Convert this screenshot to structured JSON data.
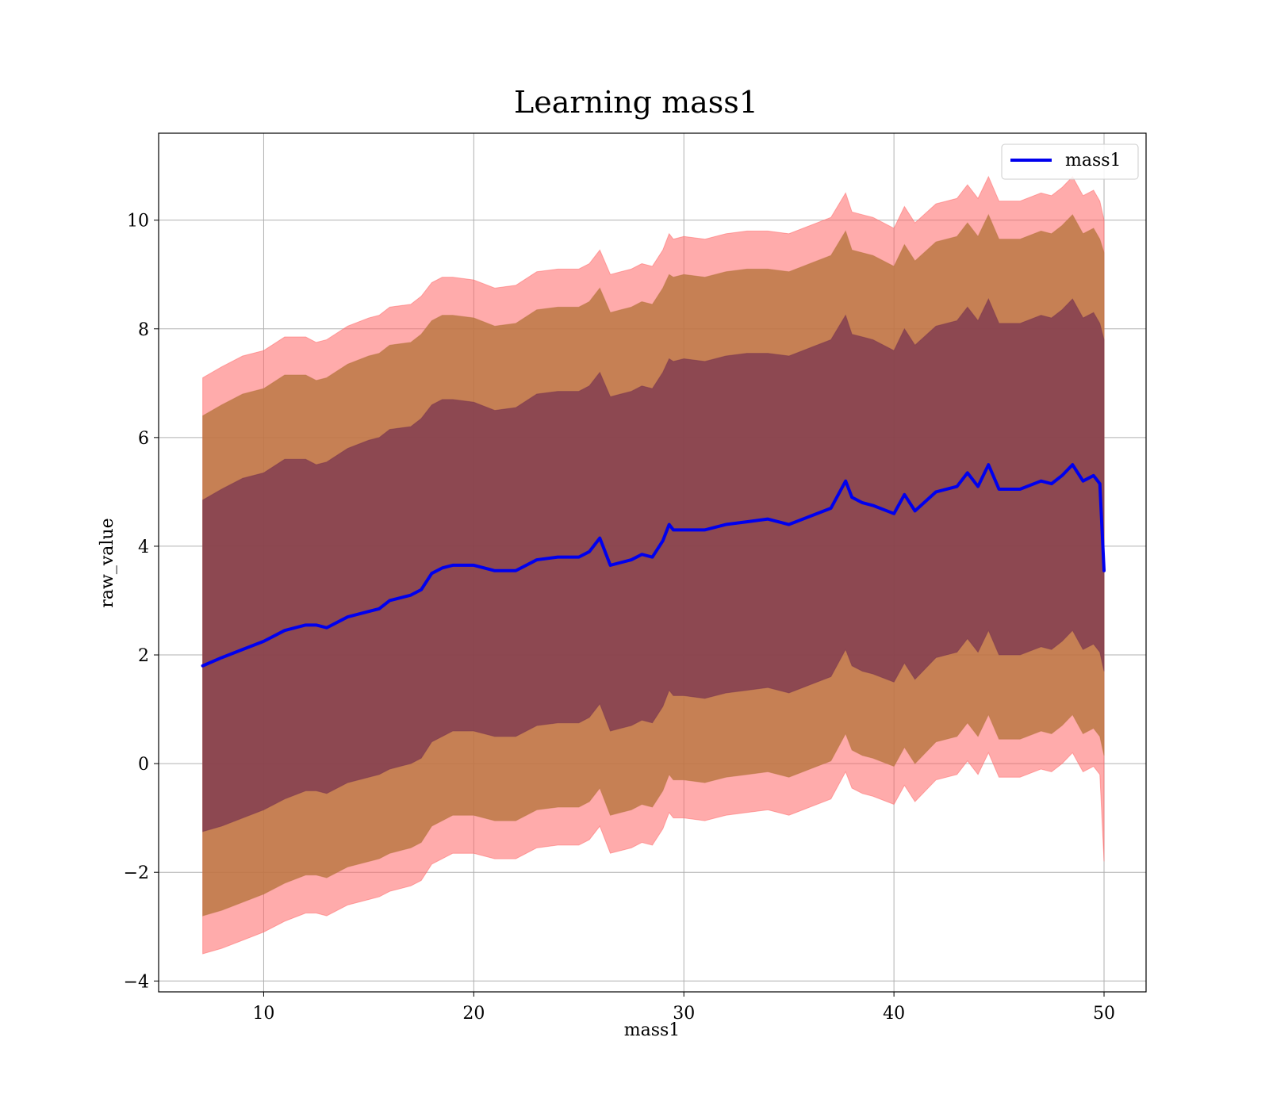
{
  "chart_data": {
    "type": "line",
    "title": "Learning mass1",
    "xlabel": "mass1",
    "ylabel": "raw_value",
    "xlim": [
      5,
      52
    ],
    "ylim": [
      -4.2,
      11.6
    ],
    "xticks": [
      10,
      20,
      30,
      40,
      50
    ],
    "yticks": [
      -4,
      -2,
      0,
      2,
      4,
      6,
      8,
      10
    ],
    "grid": true,
    "legend": {
      "placement": "top-right",
      "entries": [
        "mass1"
      ]
    },
    "colors": {
      "line": "#0000ee",
      "band_outer": "#ff6666",
      "band_middle": "#b8753f",
      "band_inner": "#7a3550"
    },
    "series": [
      {
        "name": "mass1",
        "x": [
          7.1,
          8,
          9,
          10,
          11,
          12,
          12.5,
          13,
          14,
          15,
          15.5,
          16,
          17,
          17.5,
          18,
          18.5,
          19,
          20,
          21,
          22,
          23,
          24,
          25,
          25.5,
          26,
          26.5,
          27,
          27.5,
          28,
          28.5,
          29,
          29.3,
          29.5,
          30,
          31,
          32,
          33,
          34,
          35,
          36,
          37,
          37.7,
          38,
          38.5,
          39,
          40,
          40.5,
          41,
          42,
          43,
          43.5,
          44,
          44.5,
          45,
          46,
          47,
          47.5,
          48,
          48.5,
          49,
          49.5,
          49.8,
          50
        ],
        "y": [
          1.8,
          1.95,
          2.1,
          2.25,
          2.45,
          2.55,
          2.55,
          2.5,
          2.7,
          2.8,
          2.85,
          3.0,
          3.1,
          3.2,
          3.5,
          3.6,
          3.65,
          3.65,
          3.55,
          3.55,
          3.75,
          3.8,
          3.8,
          3.9,
          4.15,
          3.65,
          3.7,
          3.75,
          3.85,
          3.8,
          4.1,
          4.4,
          4.3,
          4.3,
          4.3,
          4.4,
          4.45,
          4.5,
          4.4,
          4.55,
          4.7,
          5.2,
          4.9,
          4.8,
          4.75,
          4.6,
          4.95,
          4.65,
          5.0,
          5.1,
          5.35,
          5.1,
          5.5,
          5.05,
          5.05,
          5.2,
          5.15,
          5.3,
          5.5,
          5.2,
          5.3,
          5.15,
          3.55
        ],
        "upper_inner": [
          4.85,
          5.05,
          5.25,
          5.35,
          5.6,
          5.6,
          5.5,
          5.55,
          5.8,
          5.95,
          6.0,
          6.15,
          6.2,
          6.35,
          6.6,
          6.7,
          6.7,
          6.65,
          6.5,
          6.55,
          6.8,
          6.85,
          6.85,
          6.95,
          7.2,
          6.75,
          6.8,
          6.85,
          6.95,
          6.9,
          7.2,
          7.45,
          7.4,
          7.45,
          7.4,
          7.5,
          7.55,
          7.55,
          7.5,
          7.65,
          7.8,
          8.25,
          7.9,
          7.85,
          7.8,
          7.6,
          8.0,
          7.7,
          8.05,
          8.15,
          8.4,
          8.15,
          8.55,
          8.1,
          8.1,
          8.25,
          8.2,
          8.35,
          8.55,
          8.2,
          8.3,
          8.1,
          7.8
        ],
        "lower_inner": [
          -1.25,
          -1.15,
          -1.0,
          -0.85,
          -0.65,
          -0.5,
          -0.5,
          -0.55,
          -0.35,
          -0.25,
          -0.2,
          -0.1,
          0.0,
          0.1,
          0.4,
          0.5,
          0.6,
          0.6,
          0.5,
          0.5,
          0.7,
          0.75,
          0.75,
          0.85,
          1.1,
          0.6,
          0.65,
          0.7,
          0.8,
          0.75,
          1.05,
          1.35,
          1.25,
          1.25,
          1.2,
          1.3,
          1.35,
          1.4,
          1.3,
          1.45,
          1.6,
          2.1,
          1.8,
          1.7,
          1.65,
          1.5,
          1.85,
          1.55,
          1.95,
          2.05,
          2.3,
          2.05,
          2.45,
          2.0,
          2.0,
          2.15,
          2.1,
          2.25,
          2.45,
          2.1,
          2.2,
          2.05,
          1.7
        ],
        "upper_middle": [
          6.4,
          6.6,
          6.8,
          6.9,
          7.15,
          7.15,
          7.05,
          7.1,
          7.35,
          7.5,
          7.55,
          7.7,
          7.75,
          7.9,
          8.15,
          8.25,
          8.25,
          8.2,
          8.05,
          8.1,
          8.35,
          8.4,
          8.4,
          8.5,
          8.75,
          8.3,
          8.35,
          8.4,
          8.5,
          8.45,
          8.75,
          9.0,
          8.95,
          9.0,
          8.95,
          9.05,
          9.1,
          9.1,
          9.05,
          9.2,
          9.35,
          9.8,
          9.45,
          9.4,
          9.35,
          9.15,
          9.55,
          9.25,
          9.6,
          9.7,
          9.95,
          9.7,
          10.1,
          9.65,
          9.65,
          9.8,
          9.75,
          9.9,
          10.1,
          9.75,
          9.85,
          9.65,
          9.4
        ],
        "lower_middle": [
          -2.8,
          -2.7,
          -2.55,
          -2.4,
          -2.2,
          -2.05,
          -2.05,
          -2.1,
          -1.9,
          -1.8,
          -1.75,
          -1.65,
          -1.55,
          -1.45,
          -1.15,
          -1.05,
          -0.95,
          -0.95,
          -1.05,
          -1.05,
          -0.85,
          -0.8,
          -0.8,
          -0.7,
          -0.45,
          -0.95,
          -0.9,
          -0.85,
          -0.75,
          -0.8,
          -0.5,
          -0.2,
          -0.3,
          -0.3,
          -0.35,
          -0.25,
          -0.2,
          -0.15,
          -0.25,
          -0.1,
          0.05,
          0.55,
          0.25,
          0.15,
          0.1,
          -0.05,
          0.3,
          0.0,
          0.4,
          0.5,
          0.75,
          0.5,
          0.9,
          0.45,
          0.45,
          0.6,
          0.55,
          0.7,
          0.9,
          0.55,
          0.65,
          0.5,
          0.15
        ],
        "upper_outer": [
          7.1,
          7.3,
          7.5,
          7.6,
          7.85,
          7.85,
          7.75,
          7.8,
          8.05,
          8.2,
          8.25,
          8.4,
          8.45,
          8.6,
          8.85,
          8.95,
          8.95,
          8.9,
          8.75,
          8.8,
          9.05,
          9.1,
          9.1,
          9.2,
          9.45,
          9.0,
          9.05,
          9.1,
          9.2,
          9.15,
          9.45,
          9.75,
          9.65,
          9.7,
          9.65,
          9.75,
          9.8,
          9.8,
          9.75,
          9.9,
          10.05,
          10.5,
          10.15,
          10.1,
          10.05,
          9.85,
          10.25,
          9.95,
          10.3,
          10.4,
          10.65,
          10.4,
          10.8,
          10.35,
          10.35,
          10.5,
          10.45,
          10.6,
          10.8,
          10.45,
          10.55,
          10.35,
          10.0
        ],
        "lower_outer": [
          -3.5,
          -3.4,
          -3.25,
          -3.1,
          -2.9,
          -2.75,
          -2.75,
          -2.8,
          -2.6,
          -2.5,
          -2.45,
          -2.35,
          -2.25,
          -2.15,
          -1.85,
          -1.75,
          -1.65,
          -1.65,
          -1.75,
          -1.75,
          -1.55,
          -1.5,
          -1.5,
          -1.4,
          -1.15,
          -1.65,
          -1.6,
          -1.55,
          -1.45,
          -1.5,
          -1.2,
          -0.9,
          -1.0,
          -1.0,
          -1.05,
          -0.95,
          -0.9,
          -0.85,
          -0.95,
          -0.8,
          -0.65,
          -0.15,
          -0.45,
          -0.55,
          -0.6,
          -0.75,
          -0.4,
          -0.7,
          -0.3,
          -0.2,
          0.05,
          -0.2,
          0.2,
          -0.25,
          -0.25,
          -0.1,
          -0.15,
          0.0,
          0.2,
          -0.15,
          -0.05,
          -0.2,
          -1.8
        ]
      }
    ]
  }
}
